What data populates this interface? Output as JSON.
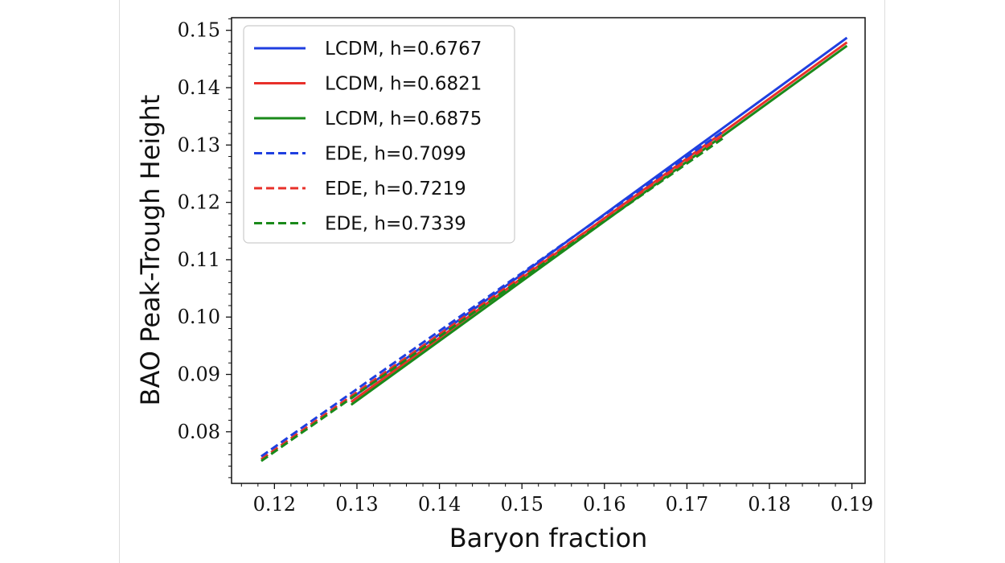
{
  "chart_data": {
    "type": "line",
    "title": "",
    "xlabel": "Baryon fraction",
    "ylabel": "BAO Peak-Trough Height",
    "xlim": [
      0.1148,
      0.1916
    ],
    "ylim": [
      0.071,
      0.1522
    ],
    "xticks": [
      0.12,
      0.13,
      0.14,
      0.15,
      0.16,
      0.17,
      0.18,
      0.19
    ],
    "xtick_labels": [
      "0.12",
      "0.13",
      "0.14",
      "0.15",
      "0.16",
      "0.17",
      "0.18",
      "0.19"
    ],
    "yticks": [
      0.08,
      0.09,
      0.1,
      0.11,
      0.12,
      0.13,
      0.14,
      0.15
    ],
    "ytick_labels": [
      "0.08",
      "0.09",
      "0.10",
      "0.11",
      "0.12",
      "0.13",
      "0.14",
      "0.15"
    ],
    "grid": false,
    "legend_position": "top-left",
    "series": [
      {
        "name": "LCDM, h=0.6767",
        "color": "#1f3fe0",
        "style": "solid",
        "x": [
          0.1293,
          0.1894
        ],
        "y": [
          0.0858,
          0.1487
        ]
      },
      {
        "name": "LCDM, h=0.6821",
        "color": "#e8302a",
        "style": "solid",
        "x": [
          0.1293,
          0.1894
        ],
        "y": [
          0.0852,
          0.1479
        ]
      },
      {
        "name": "LCDM, h=0.6875",
        "color": "#1a8a1a",
        "style": "solid",
        "x": [
          0.1293,
          0.1894
        ],
        "y": [
          0.0847,
          0.1473
        ]
      },
      {
        "name": "EDE, h=0.7099",
        "color": "#1f3fe0",
        "style": "dashed",
        "x": [
          0.1184,
          0.1745
        ],
        "y": [
          0.0757,
          0.1325
        ]
      },
      {
        "name": "EDE, h=0.7219",
        "color": "#e8302a",
        "style": "dashed",
        "x": [
          0.1184,
          0.1745
        ],
        "y": [
          0.0752,
          0.1318
        ]
      },
      {
        "name": "EDE, h=0.7339",
        "color": "#1a8a1a",
        "style": "dashed",
        "x": [
          0.1184,
          0.1745
        ],
        "y": [
          0.0749,
          0.1313
        ]
      }
    ]
  }
}
